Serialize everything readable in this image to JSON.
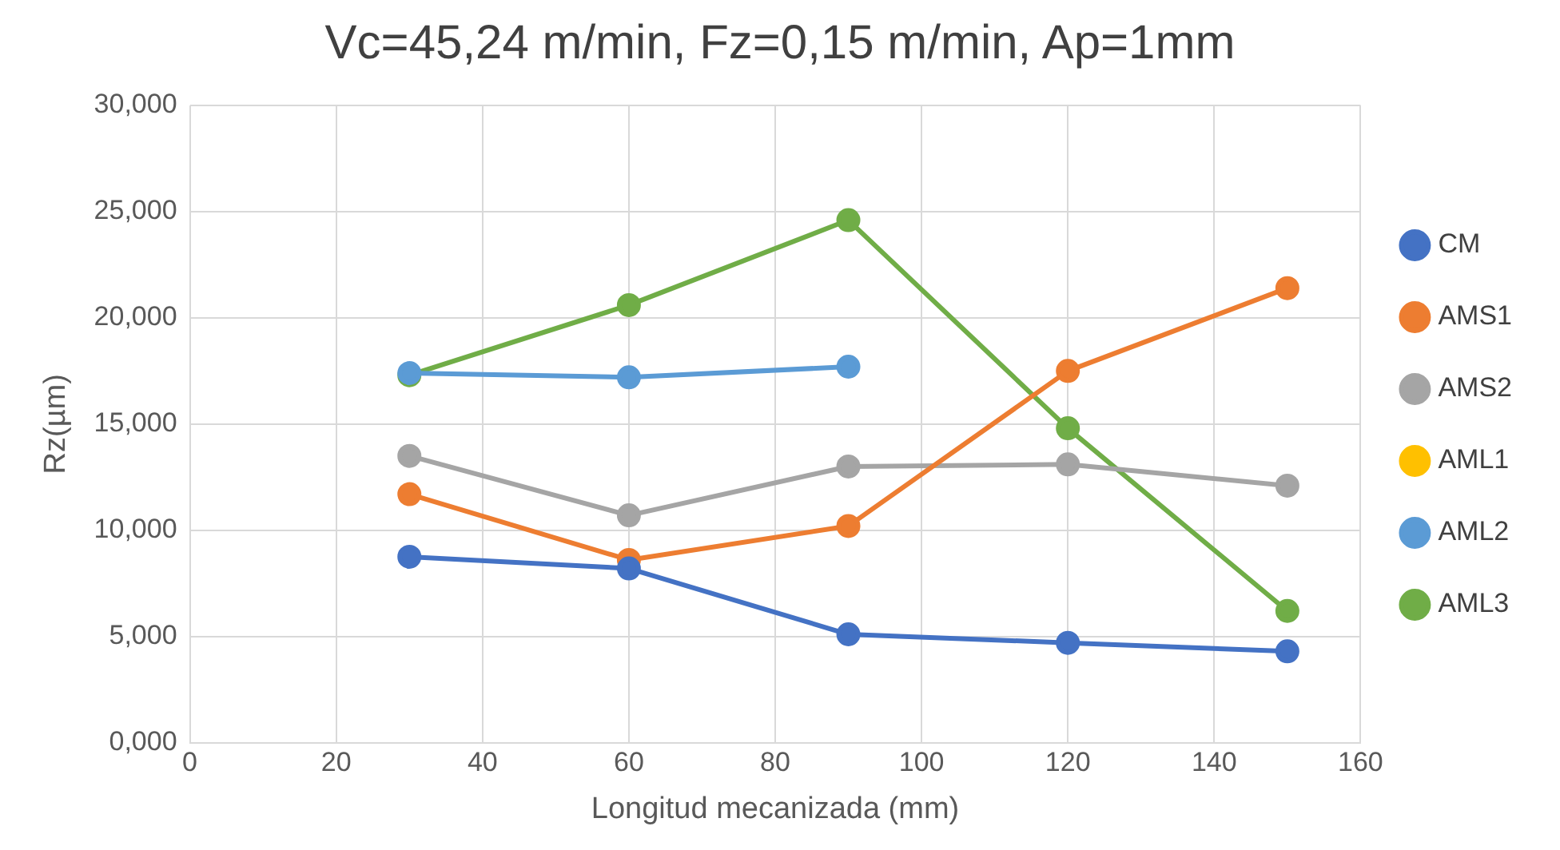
{
  "chart_data": {
    "type": "line",
    "title": "Vc=45,24 m/min, Fz=0,15 m/min, Ap=1mm",
    "xlabel": "Longitud mecanizada (mm)",
    "ylabel": "Rz(µm)",
    "x": [
      30,
      60,
      90,
      120,
      150
    ],
    "series": [
      {
        "name": "CM",
        "color": "#4472c4",
        "values": [
          8.75,
          8.2,
          5.1,
          4.7,
          4.3
        ]
      },
      {
        "name": "AMS1",
        "color": "#ed7d31",
        "values": [
          11.7,
          8.6,
          10.2,
          17.5,
          21.4
        ]
      },
      {
        "name": "AMS2",
        "color": "#a5a5a5",
        "values": [
          13.5,
          10.7,
          13.0,
          13.1,
          12.1
        ]
      },
      {
        "name": "AML1",
        "color": "#ffc000",
        "values": [
          null,
          null,
          null,
          null,
          null
        ]
      },
      {
        "name": "AML2",
        "color": "#5b9bd5",
        "values": [
          17.4,
          17.2,
          17.7,
          null,
          null
        ]
      },
      {
        "name": "AML3",
        "color": "#70ad47",
        "values": [
          17.3,
          20.6,
          24.6,
          14.8,
          6.2
        ]
      }
    ],
    "xlim": [
      0,
      160
    ],
    "xticks": [
      0,
      20,
      40,
      60,
      80,
      100,
      120,
      140,
      160
    ],
    "ylim": [
      0,
      30
    ],
    "yticks": [
      {
        "value": 0,
        "label": "0,000"
      },
      {
        "value": 5,
        "label": "5,000"
      },
      {
        "value": 10,
        "label": "10,000"
      },
      {
        "value": 15,
        "label": "15,000"
      },
      {
        "value": 20,
        "label": "20,000"
      },
      {
        "value": 25,
        "label": "25,000"
      },
      {
        "value": 30,
        "label": "30,000"
      }
    ],
    "grid": true,
    "legend": "right",
    "marker": "circle",
    "line_style": "solid"
  }
}
